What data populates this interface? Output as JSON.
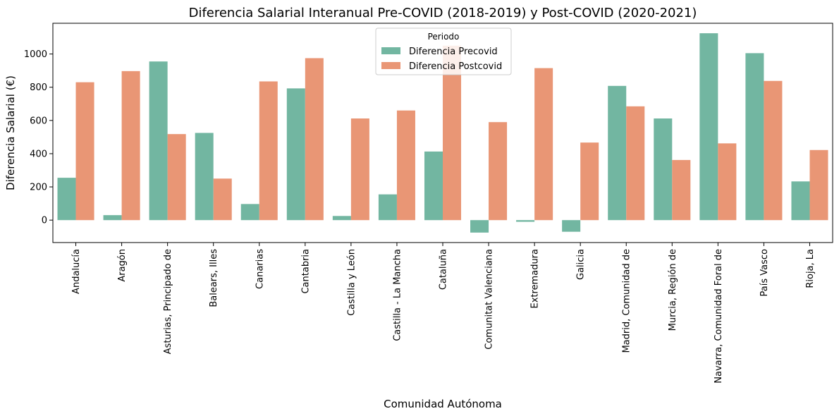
{
  "chart_data": {
    "type": "bar",
    "title": "Diferencia Salarial Interanual Pre-COVID (2018-2019) y Post-COVID (2020-2021)",
    "xlabel": "Comunidad Autónoma",
    "ylabel": "Diferencia Salarial (€)",
    "ylim": [
      -135,
      1185
    ],
    "yticks": [
      0,
      200,
      400,
      600,
      800,
      1000
    ],
    "grid": false,
    "legend": {
      "title": "Periodo",
      "placement": "top-center"
    },
    "categories": [
      "Andalucía",
      "Aragón",
      "Asturias, Principado de",
      "Balears, Illes",
      "Canarias",
      "Cantabria",
      "Castilla y León",
      "Castilla - La Mancha",
      "Cataluña",
      "Comunitat Valenciana",
      "Extremadura",
      "Galicia",
      "Madrid, Comunidad de",
      "Murcia, Región de",
      "Navarra, Comunidad Foral de",
      "País Vasco",
      "Rioja, La"
    ],
    "series": [
      {
        "name": "Diferencia Precovid",
        "color": "#72b6a1",
        "values": [
          255,
          30,
          955,
          525,
          97,
          793,
          25,
          155,
          413,
          -75,
          -10,
          -70,
          808,
          612,
          1125,
          1005,
          233
        ]
      },
      {
        "name": "Diferencia Postcovid",
        "color": "#e99675",
        "values": [
          830,
          897,
          518,
          250,
          835,
          975,
          612,
          660,
          1050,
          590,
          915,
          467,
          685,
          362,
          462,
          838,
          422
        ]
      }
    ]
  }
}
